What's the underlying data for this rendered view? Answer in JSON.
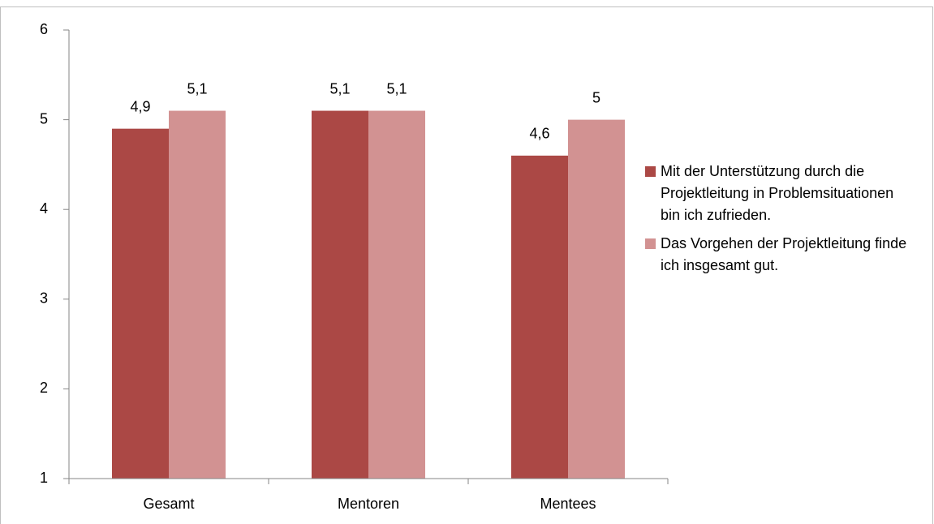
{
  "chart_data": {
    "type": "bar",
    "categories": [
      "Gesamt",
      "Mentoren",
      "Mentees"
    ],
    "series": [
      {
        "name": "Mit der Unterstützung durch die Projektleitung in Problemsituationen bin ich zufrieden.",
        "color": "#ab4845",
        "values": [
          4.9,
          5.1,
          4.6
        ],
        "value_labels": [
          "4,9",
          "5,1",
          "4,6"
        ]
      },
      {
        "name": "Das Vorgehen der Projektleitung finde ich insgesamt gut.",
        "color": "#d29292",
        "values": [
          5.1,
          5.1,
          5
        ],
        "value_labels": [
          "5,1",
          "5,1",
          "5"
        ]
      }
    ],
    "ylim": [
      1,
      6
    ],
    "yticks": [
      1,
      2,
      3,
      4,
      5,
      6
    ],
    "grid": false,
    "legend": "right"
  }
}
